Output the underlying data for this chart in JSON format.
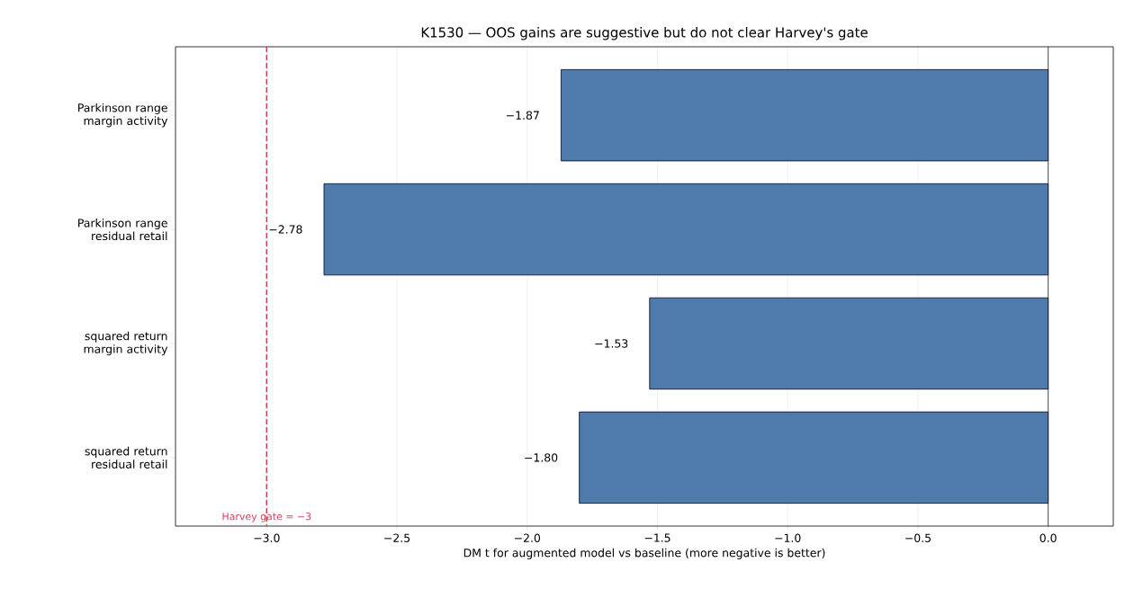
{
  "chart_data": {
    "type": "bar",
    "orientation": "horizontal",
    "title": "K1530 — OOS gains are suggestive but do not clear Harvey's gate",
    "xlabel": "DM t for augmented model vs baseline (more negative is better)",
    "categories": [
      "Parkinson range margin activity",
      "Parkinson range residual retail",
      "squared return margin activity",
      "squared return residual retail"
    ],
    "values": [
      -1.87,
      -2.78,
      -1.53,
      -1.8
    ],
    "value_labels": [
      "−1.87",
      "−2.78",
      "−1.53",
      "−1.80"
    ],
    "color": "#4e7bac",
    "xlim": [
      -3.35,
      0.25
    ],
    "xticks": [
      {
        "value": -3.0,
        "label": "−3.0"
      },
      {
        "value": -2.5,
        "label": "−2.5"
      },
      {
        "value": -2.0,
        "label": "−2.0"
      },
      {
        "value": -1.5,
        "label": "−1.5"
      },
      {
        "value": -1.0,
        "label": "−1.0"
      },
      {
        "value": -0.5,
        "label": "−0.5"
      },
      {
        "value": 0.0,
        "label": "0.0"
      }
    ],
    "grid": "x",
    "ref_lines": [
      {
        "axis": "x",
        "value": 0,
        "color": "#222222",
        "line_style": "solid"
      },
      {
        "axis": "x",
        "value": -3,
        "label": "Harvey gate = −3",
        "color": "#c8435a",
        "line_style": "dashed"
      }
    ]
  }
}
